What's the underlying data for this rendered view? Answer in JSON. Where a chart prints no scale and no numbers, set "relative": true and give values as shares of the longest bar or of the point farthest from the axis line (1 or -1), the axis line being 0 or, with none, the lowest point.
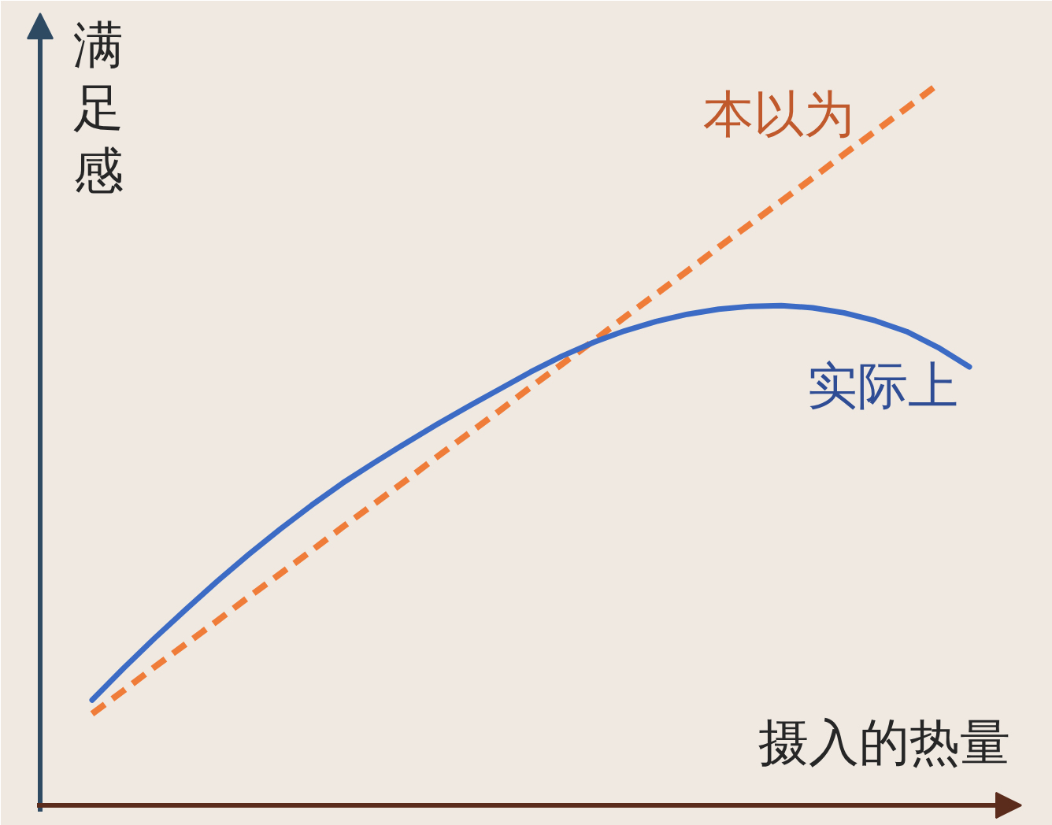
{
  "chart_data": {
    "type": "line",
    "relative": true,
    "xlabel": "摄入的热量",
    "ylabel": "满足感",
    "categories": [
      null,
      null,
      null,
      null,
      null,
      null,
      null,
      null,
      null,
      null,
      null,
      null,
      null,
      null,
      null,
      null,
      null,
      null,
      null,
      null,
      null,
      null,
      null,
      null,
      null,
      null,
      null,
      null,
      null
    ],
    "series": [
      {
        "name": "本以为",
        "color": "#f07c3a",
        "line_style": "dashed",
        "values": [
          0.127,
          0.159,
          0.192,
          0.224,
          0.256,
          0.289,
          0.321,
          0.353,
          0.386,
          0.418,
          0.45,
          0.483,
          0.515,
          0.547,
          0.58,
          0.612,
          0.644,
          0.677,
          0.709,
          0.741,
          0.774,
          0.806,
          0.838,
          0.87,
          0.903,
          0.935,
          0.967,
          1.0,
          null
        ]
      },
      {
        "name": "实际上",
        "color": "#3b6bc4",
        "line_style": "solid",
        "values": [
          0.146,
          0.19,
          0.232,
          0.272,
          0.311,
          0.348,
          0.383,
          0.416,
          0.447,
          0.475,
          0.502,
          0.528,
          0.553,
          0.577,
          0.601,
          0.623,
          0.642,
          0.658,
          0.671,
          0.681,
          0.688,
          0.692,
          0.693,
          0.69,
          0.683,
          0.672,
          0.657,
          0.635,
          0.608
        ]
      }
    ],
    "legend": false,
    "grid": false,
    "tick_labels": false
  }
}
